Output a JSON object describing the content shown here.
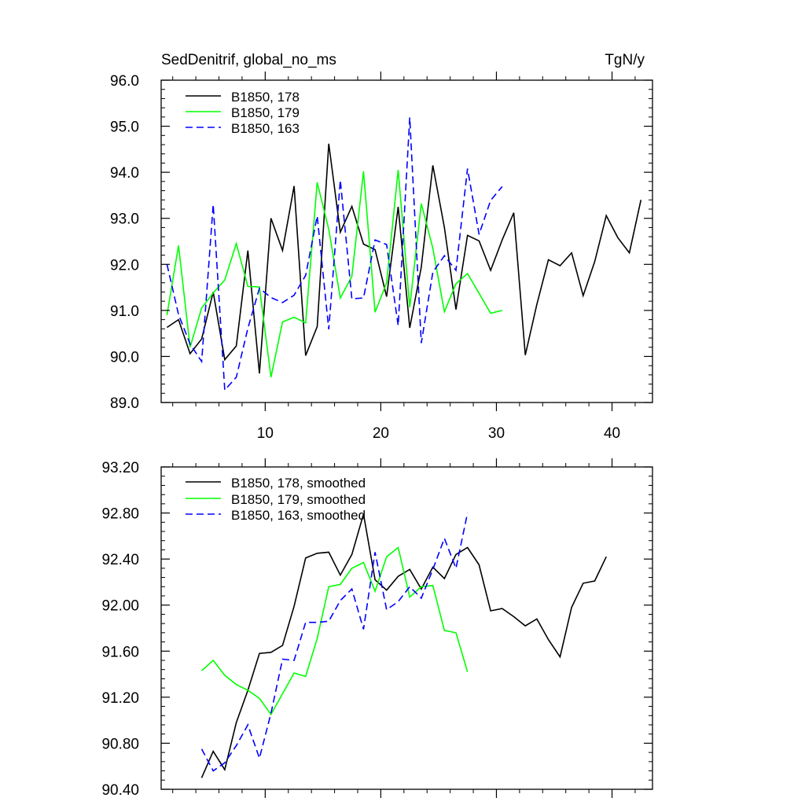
{
  "chart_data": [
    {
      "type": "line",
      "title": "SedDenitrif, global_no_ms",
      "units": "TgN/y",
      "xlim": [
        1,
        43.5
      ],
      "ylim": [
        89.0,
        96.0
      ],
      "xticks": [
        10,
        20,
        30,
        40
      ],
      "yticks": [
        89.0,
        90.0,
        91.0,
        92.0,
        93.0,
        94.0,
        95.0,
        96.0
      ],
      "y_decimals": 1,
      "show_x_tick_labels": true,
      "series": [
        {
          "name": "B1850, 178",
          "color": "#000000",
          "dash": "solid",
          "x": [
            1.5,
            2.5,
            3.5,
            4.5,
            5.5,
            6.5,
            7.5,
            8.5,
            9.5,
            10.5,
            11.5,
            12.5,
            13.5,
            14.5,
            15.5,
            16.5,
            17.5,
            18.5,
            19.5,
            20.5,
            21.5,
            22.5,
            23.5,
            24.5,
            25.5,
            26.5,
            27.5,
            28.5,
            29.5,
            30.5,
            31.5,
            32.5,
            33.5,
            34.5,
            35.5,
            36.5,
            37.5,
            38.5,
            39.5,
            40.5,
            41.5,
            42.5
          ],
          "values": [
            90.63,
            90.8,
            90.06,
            90.38,
            91.4,
            89.93,
            90.23,
            92.3,
            89.63,
            93.0,
            92.3,
            93.7,
            90.02,
            90.65,
            94.62,
            92.7,
            93.26,
            92.44,
            92.32,
            91.3,
            93.25,
            90.62,
            91.94,
            94.15,
            92.8,
            91.02,
            92.63,
            92.51,
            91.87,
            92.53,
            93.12,
            90.03,
            91.13,
            92.1,
            91.97,
            92.25,
            91.32,
            92.06,
            93.06,
            92.58,
            92.25,
            93.4
          ]
        },
        {
          "name": "B1850, 179",
          "color": "#00ff00",
          "dash": "solid",
          "x": [
            1.5,
            2.5,
            3.5,
            4.5,
            5.5,
            6.5,
            7.5,
            8.5,
            9.5,
            10.5,
            11.5,
            12.5,
            13.5,
            14.5,
            15.5,
            16.5,
            17.5,
            18.5,
            19.5,
            20.5,
            21.5,
            22.5,
            23.5,
            24.5,
            25.5,
            26.5,
            27.5,
            28.5,
            29.5,
            30.5
          ],
          "values": [
            90.9,
            92.41,
            90.2,
            91.05,
            91.38,
            91.66,
            92.45,
            91.52,
            91.51,
            89.55,
            90.75,
            90.85,
            90.73,
            93.78,
            92.76,
            91.27,
            91.74,
            94.02,
            90.96,
            91.6,
            94.05,
            91.07,
            93.32,
            92.35,
            90.97,
            91.58,
            91.8,
            91.37,
            90.94,
            91.0
          ]
        },
        {
          "name": "B1850, 163",
          "color": "#0000ff",
          "dash": "dashed",
          "x": [
            1.5,
            2.5,
            3.5,
            4.5,
            5.5,
            6.5,
            7.5,
            8.5,
            9.5,
            10.5,
            11.5,
            12.5,
            13.5,
            14.5,
            15.5,
            16.5,
            17.5,
            18.5,
            19.5,
            20.5,
            21.5,
            22.5,
            23.5,
            24.5,
            25.5,
            26.5,
            27.5,
            28.5,
            29.5,
            30.5
          ],
          "values": [
            92.0,
            90.91,
            90.27,
            89.89,
            93.3,
            89.27,
            89.55,
            90.61,
            91.48,
            91.28,
            91.17,
            91.33,
            91.76,
            93.05,
            90.59,
            93.83,
            91.25,
            91.27,
            92.53,
            92.43,
            90.67,
            95.19,
            90.29,
            91.83,
            92.19,
            91.87,
            94.08,
            92.65,
            93.39,
            93.69
          ]
        }
      ],
      "legend": [
        "B1850, 178",
        "B1850, 179",
        "B1850, 163"
      ],
      "legend_position": "top-left"
    },
    {
      "type": "line",
      "title": "",
      "units": "",
      "xlim": [
        1,
        43.5
      ],
      "ylim": [
        90.4,
        93.2
      ],
      "xticks": [
        10,
        20,
        30,
        40
      ],
      "yticks": [
        90.4,
        90.8,
        91.2,
        91.6,
        92.0,
        92.4,
        92.8,
        93.2
      ],
      "y_decimals": 2,
      "show_x_tick_labels": false,
      "series": [
        {
          "name": "B1850, 178, smoothed",
          "color": "#000000",
          "dash": "solid",
          "x": [
            4.5,
            5.5,
            6.5,
            7.5,
            8.5,
            9.5,
            10.5,
            11.5,
            12.5,
            13.5,
            14.5,
            15.5,
            16.5,
            17.5,
            18.5,
            19.5,
            20.5,
            21.5,
            22.5,
            23.5,
            24.5,
            25.5,
            26.5,
            27.5,
            28.5,
            29.5,
            30.5,
            31.5,
            32.5,
            33.5,
            34.5,
            35.5,
            36.5,
            37.5,
            38.5,
            39.5
          ],
          "values": [
            90.5,
            90.73,
            90.57,
            90.98,
            91.26,
            91.58,
            91.59,
            91.65,
            91.99,
            92.41,
            92.45,
            92.46,
            92.26,
            92.44,
            92.79,
            92.22,
            92.13,
            92.25,
            92.31,
            92.14,
            92.33,
            92.23,
            92.44,
            92.5,
            92.35,
            91.95,
            91.97,
            91.9,
            91.82,
            91.88,
            91.7,
            91.55,
            91.98,
            92.19,
            92.21,
            92.42
          ]
        },
        {
          "name": "B1850, 179, smoothed",
          "color": "#00ff00",
          "dash": "solid",
          "x": [
            4.5,
            5.5,
            6.5,
            7.5,
            8.5,
            9.5,
            10.5,
            11.5,
            12.5,
            13.5,
            14.5,
            15.5,
            16.5,
            17.5,
            18.5,
            19.5,
            20.5,
            21.5,
            22.5,
            23.5,
            24.5,
            25.5,
            26.5,
            27.5
          ],
          "values": [
            91.43,
            91.52,
            91.39,
            91.31,
            91.26,
            91.19,
            91.05,
            91.23,
            91.41,
            91.38,
            91.71,
            92.16,
            92.18,
            92.32,
            92.37,
            92.12,
            92.42,
            92.5,
            92.07,
            92.16,
            92.17,
            91.78,
            91.76,
            91.42
          ]
        },
        {
          "name": "B1850, 163, smoothed",
          "color": "#0000ff",
          "dash": "dashed",
          "x": [
            4.5,
            5.5,
            6.5,
            7.5,
            8.5,
            9.5,
            10.5,
            11.5,
            12.5,
            13.5,
            14.5,
            15.5,
            16.5,
            17.5,
            18.5,
            19.5,
            20.5,
            21.5,
            22.5,
            23.5,
            24.5,
            25.5,
            26.5,
            27.5
          ],
          "values": [
            90.75,
            90.56,
            90.63,
            90.78,
            90.96,
            90.67,
            91.06,
            91.53,
            91.52,
            91.85,
            91.85,
            91.86,
            92.04,
            92.14,
            91.79,
            92.46,
            91.96,
            92.03,
            92.16,
            92.06,
            92.31,
            92.58,
            92.32,
            92.8
          ]
        }
      ],
      "legend": [
        "B1850, 178, smoothed",
        "B1850, 179, smoothed",
        "B1850, 163, smoothed"
      ],
      "legend_position": "top-left"
    }
  ]
}
